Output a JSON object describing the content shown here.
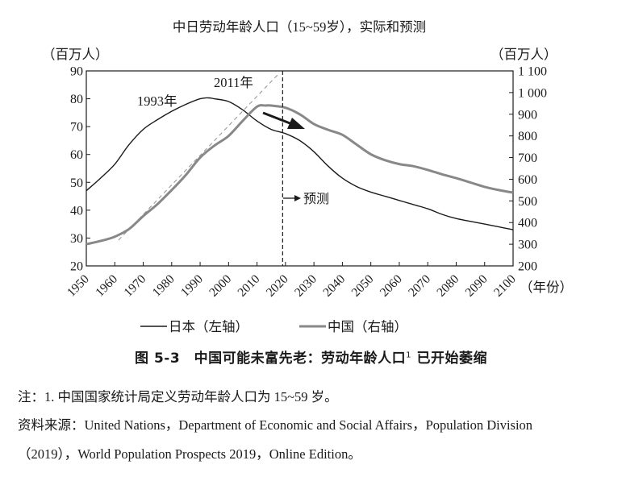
{
  "chart_data": {
    "type": "line",
    "title": "中日劳动年龄人口（15~59岁），实际和预测",
    "left_unit": "（百万人）",
    "right_unit": "（百万人）",
    "x_unit": "（年份）",
    "x_ticks": [
      "1950",
      "1960",
      "1970",
      "1980",
      "1990",
      "2000",
      "2010",
      "2020",
      "2030",
      "2040",
      "2050",
      "2060",
      "2070",
      "2080",
      "2090",
      "2100"
    ],
    "xlim": [
      1950,
      2100
    ],
    "left_ticks": [
      "20",
      "30",
      "40",
      "50",
      "60",
      "70",
      "80",
      "90"
    ],
    "left_ylim": [
      20,
      90
    ],
    "right_ticks": [
      "200",
      "300",
      "400",
      "500",
      "600",
      "700",
      "800",
      "900",
      "1 000",
      "1 100"
    ],
    "right_ylim": [
      200,
      1100
    ],
    "series": [
      {
        "name": "日本（左轴）",
        "axis": "left",
        "color": "#1a1a1a",
        "x": [
          1950,
          1955,
          1960,
          1965,
          1970,
          1975,
          1980,
          1985,
          1990,
          1993,
          1995,
          2000,
          2005,
          2010,
          2015,
          2020,
          2025,
          2030,
          2035,
          2040,
          2045,
          2050,
          2055,
          2060,
          2065,
          2070,
          2075,
          2080,
          2085,
          2090,
          2095,
          2100
        ],
        "values": [
          47,
          51.5,
          56.5,
          63.5,
          69,
          72.5,
          75.5,
          78,
          80,
          80.3,
          80,
          79,
          76,
          72,
          69,
          67.5,
          65,
          61,
          55.8,
          51.5,
          48.5,
          46.5,
          45,
          43.5,
          42,
          40.5,
          38.5,
          37,
          36,
          35,
          34,
          33
        ]
      },
      {
        "name": "中国（右轴）",
        "axis": "right",
        "color": "#888888",
        "x": [
          1950,
          1955,
          1960,
          1965,
          1970,
          1975,
          1980,
          1985,
          1990,
          1995,
          2000,
          2005,
          2010,
          2013,
          2015,
          2020,
          2025,
          2030,
          2035,
          2040,
          2045,
          2050,
          2055,
          2060,
          2065,
          2070,
          2075,
          2080,
          2085,
          2090,
          2095,
          2100
        ],
        "values": [
          300,
          315,
          335,
          370,
          430,
          485,
          550,
          620,
          700,
          755,
          800,
          870,
          935,
          940,
          940,
          930,
          900,
          855,
          828,
          805,
          760,
          715,
          688,
          670,
          660,
          643,
          623,
          605,
          585,
          565,
          550,
          538
        ]
      }
    ],
    "annotations": {
      "peak_label": "1993年",
      "dashed_label": "2011年",
      "forecast_label": "预测",
      "forecast_year": 2019
    },
    "legend": [
      "日本（左轴）",
      "中国（右轴）"
    ],
    "legend_position": "bottom"
  },
  "caption": {
    "prefix": "图 5-3　中国可能未富先老：劳动年龄人口",
    "note_mark": "1",
    "suffix": "已开始萎缩"
  },
  "notes": {
    "line1": "注：1. 中国国家统计局定义劳动年龄人口为 15~59 岁。",
    "line2": "资料来源：United Nations，Department of Economic and Social Affairs，Population Division",
    "line3": "（2019），World Population Prospects 2019，Online Edition。"
  }
}
